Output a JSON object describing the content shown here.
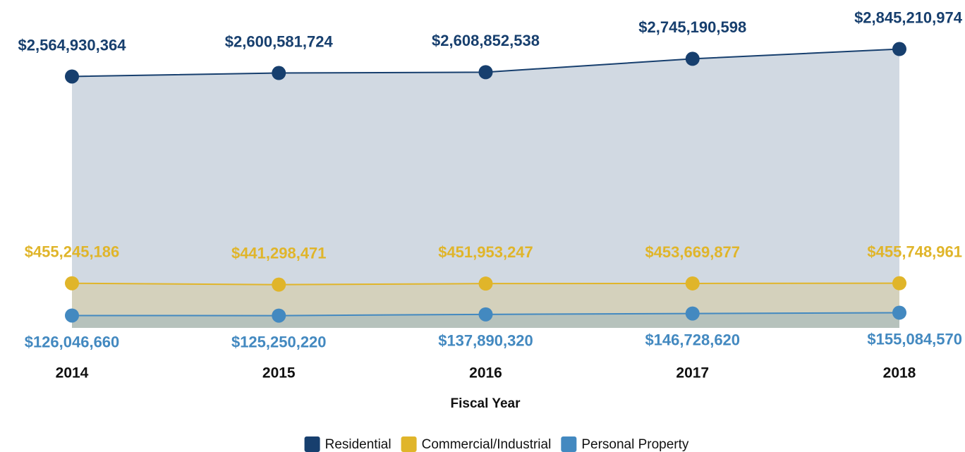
{
  "chart_data": {
    "type": "area",
    "x_label": "Fiscal Year",
    "categories": [
      "2014",
      "2015",
      "2016",
      "2017",
      "2018"
    ],
    "ylim": [
      0,
      3000000000
    ],
    "legend": "bottom",
    "series": [
      {
        "name": "Residential",
        "color": "#173f6e",
        "values": [
          2564930364,
          2600581724,
          2608852538,
          2745190598,
          2845210974
        ],
        "value_labels": [
          "$2,564,930,364",
          "$2,600,581,724",
          "$2,608,852,538",
          "$2,745,190,598",
          "$2,845,210,974"
        ]
      },
      {
        "name": "Commercial/Industrial",
        "color": "#e0b52a",
        "values": [
          455245186,
          441298471,
          451953247,
          453669877,
          455748961
        ],
        "value_labels": [
          "$455,245,186",
          "$441,298,471",
          "$451,953,247",
          "$453,669,877",
          "$455,748,961"
        ]
      },
      {
        "name": "Personal Property",
        "color": "#4389c0",
        "values": [
          126046660,
          125250220,
          137890320,
          146728620,
          155084570
        ],
        "value_labels": [
          "$126,046,660",
          "$125,250,220",
          "$137,890,320",
          "$146,728,620",
          "$155,084,570"
        ]
      }
    ]
  }
}
